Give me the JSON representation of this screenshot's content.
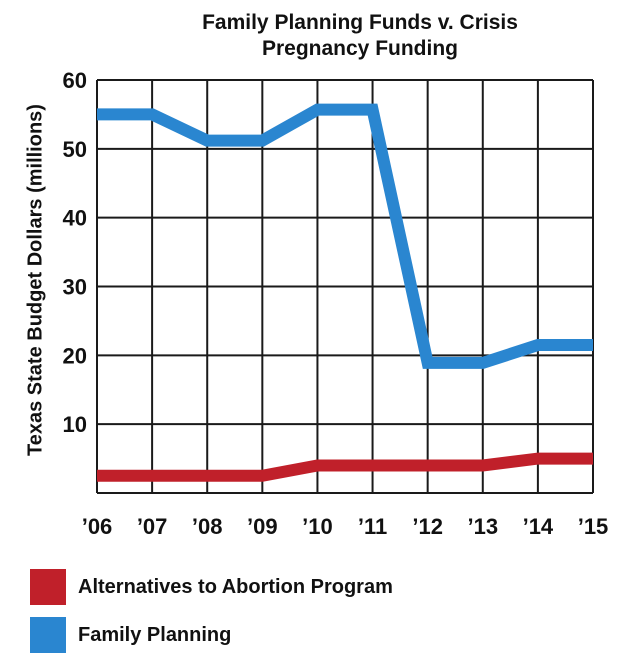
{
  "chart_data": {
    "type": "line",
    "title": "Family Planning Funds v. Crisis Pregnancy Funding",
    "title_lines": [
      "Family Planning Funds v. Crisis",
      "Pregnancy Funding"
    ],
    "xlabel": "",
    "ylabel": "Texas State Budget Dollars (millions)",
    "categories": [
      "’06",
      "’07",
      "’08",
      "’09",
      "’10",
      "’11",
      "’12",
      "’13",
      "’14",
      "’15"
    ],
    "y_ticks": [
      10,
      20,
      30,
      40,
      50,
      60
    ],
    "ylim": [
      0,
      60
    ],
    "grid": true,
    "legend_position": "bottom",
    "series": [
      {
        "name": "Family Planning",
        "color": "#2a86d0",
        "values": [
          55,
          55,
          51.2,
          51.2,
          55.7,
          55.7,
          18.9,
          18.9,
          21.5,
          21.5
        ]
      },
      {
        "name": "Alternatives to Abortion Program",
        "color": "#c0202a",
        "values": [
          2.5,
          2.5,
          2.5,
          2.5,
          4,
          4,
          4,
          4,
          5,
          5
        ]
      }
    ],
    "legend": [
      {
        "label": "Alternatives to Abortion Program",
        "color": "#c0202a"
      },
      {
        "label": "Family Planning",
        "color": "#2a86d0"
      }
    ]
  }
}
